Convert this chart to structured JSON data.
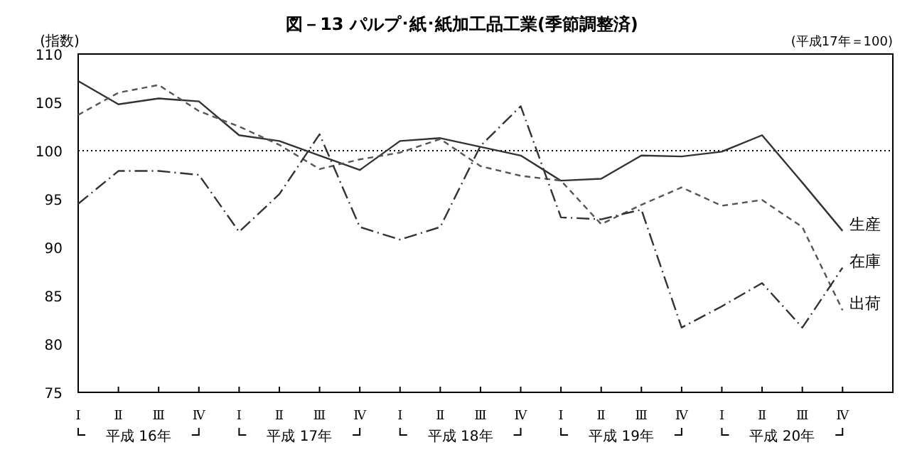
{
  "chart_data": {
    "type": "line",
    "title": "図－13 パルプ･紙･紙加工品工業(季節調整済)",
    "ylabel": "(指数)",
    "annotations": [
      "(平成17年＝100)",
      "平成 16年",
      "平成 17年",
      "平成 18年",
      "平成 19年",
      "平成 20年"
    ],
    "categories": [
      "Ⅰ",
      "Ⅱ",
      "Ⅲ",
      "Ⅳ",
      "Ⅰ",
      "Ⅱ",
      "Ⅲ",
      "Ⅳ",
      "Ⅰ",
      "Ⅱ",
      "Ⅲ",
      "Ⅳ",
      "Ⅰ",
      "Ⅱ",
      "Ⅲ",
      "Ⅳ",
      "Ⅰ",
      "Ⅱ",
      "Ⅲ",
      "Ⅳ"
    ],
    "ylim": [
      75,
      110
    ],
    "yticks": [
      75,
      80,
      85,
      90,
      95,
      100,
      105,
      110
    ],
    "grid": false,
    "legend": false,
    "marker": "none",
    "ref_lines": [
      {
        "axis": "y",
        "value": 100,
        "color": "#000000",
        "line_style": "dotted"
      }
    ],
    "series": [
      {
        "name": "生産",
        "color": "#333333",
        "line_style": "solid",
        "values": [
          107.2,
          104.8,
          105.4,
          105.1,
          101.6,
          101.0,
          99.5,
          98.0,
          101.0,
          101.3,
          100.4,
          99.5,
          96.9,
          97.1,
          99.5,
          99.4,
          99.9,
          101.6,
          96.7,
          91.7
        ]
      },
      {
        "name": "出荷",
        "color": "#555555",
        "line_style": "dashed",
        "values": [
          103.7,
          106.0,
          106.8,
          104.1,
          102.5,
          100.6,
          98.1,
          99.1,
          99.8,
          101.2,
          98.4,
          97.4,
          96.9,
          92.4,
          94.4,
          96.2,
          94.3,
          94.9,
          92.1,
          83.5
        ]
      },
      {
        "name": "在庫",
        "color": "#333333",
        "line_style": "dashdot",
        "values": [
          94.5,
          97.9,
          97.9,
          97.5,
          91.6,
          95.5,
          101.7,
          92.1,
          90.8,
          92.1,
          100.5,
          104.6,
          93.1,
          92.9,
          93.9,
          81.7,
          83.9,
          86.3,
          81.7,
          87.9
        ]
      }
    ]
  }
}
